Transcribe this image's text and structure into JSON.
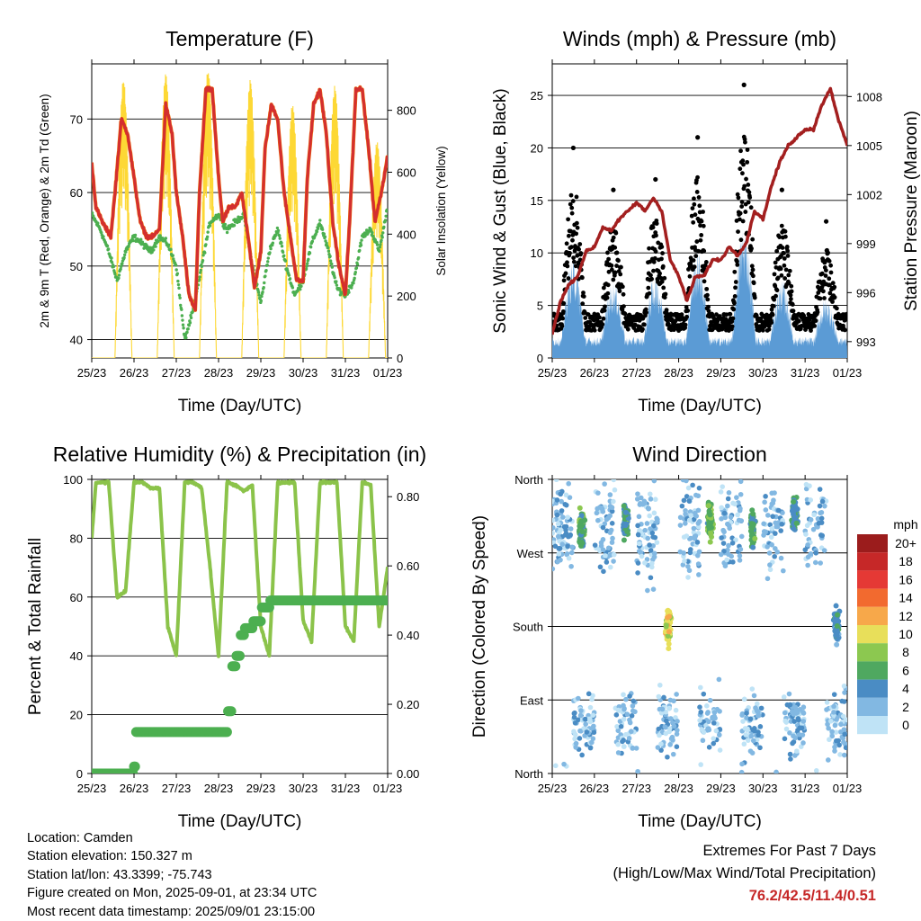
{
  "chart_data": [
    {
      "type": "line",
      "title": "Temperature (F)",
      "xlabel": "Time (Day/UTC)",
      "ylabel": "2m & 9m T (Red, Orange) & 2m Td (Green)",
      "y2label": "Solar Insolation (Yellow)",
      "x_ticks": [
        "25/23",
        "26/23",
        "27/23",
        "28/23",
        "29/23",
        "30/23",
        "31/23",
        "01/23"
      ],
      "x_range_days": [
        0,
        7
      ],
      "ylim": [
        37.5,
        77.5
      ],
      "y_ticks": [
        40,
        50,
        60,
        70
      ],
      "y2lim": [
        0,
        950
      ],
      "y2_ticks": [
        0,
        200,
        400,
        600,
        800
      ],
      "colors": {
        "temp_2m": "#d32f2f",
        "temp_9m": "#f57c00",
        "dewpoint": "#4caf50",
        "solar": "#fdd835"
      },
      "series": [
        {
          "name": "2m T",
          "x": [
            0,
            0.1,
            0.25,
            0.45,
            0.55,
            0.7,
            0.85,
            1.0,
            1.15,
            1.3,
            1.45,
            1.6,
            1.75,
            1.9,
            2.0,
            2.15,
            2.3,
            2.45,
            2.55,
            2.7,
            2.85,
            3.0,
            3.1,
            3.25,
            3.4,
            3.55,
            3.7,
            3.85,
            4.0,
            4.1,
            4.25,
            4.4,
            4.55,
            4.7,
            4.85,
            5.0,
            5.1,
            5.25,
            5.4,
            5.55,
            5.7,
            5.85,
            6.0,
            6.1,
            6.25,
            6.4,
            6.55,
            6.7,
            6.85,
            7.0
          ],
          "y": [
            64,
            58,
            56,
            54,
            60,
            70,
            68,
            62,
            56,
            54,
            54,
            55,
            72,
            68,
            60,
            54,
            46,
            44,
            60,
            74,
            74,
            62,
            56,
            58,
            58,
            60,
            54,
            47,
            52,
            66,
            72,
            70,
            60,
            54,
            48,
            48,
            62,
            72,
            74,
            68,
            56,
            50,
            46,
            56,
            74,
            74,
            66,
            56,
            60,
            65
          ]
        },
        {
          "name": "Td",
          "x": [
            0,
            0.2,
            0.4,
            0.6,
            0.8,
            1.0,
            1.2,
            1.4,
            1.6,
            1.8,
            2.0,
            2.2,
            2.4,
            2.6,
            2.8,
            3.0,
            3.2,
            3.4,
            3.6,
            3.8,
            4.0,
            4.2,
            4.4,
            4.6,
            4.8,
            5.0,
            5.2,
            5.4,
            5.6,
            5.8,
            6.0,
            6.2,
            6.4,
            6.6,
            6.8,
            7.0
          ],
          "y": [
            57,
            55,
            52,
            48,
            52,
            54,
            53,
            52,
            54,
            53,
            50,
            40,
            44,
            50,
            56,
            57,
            55,
            56,
            57,
            50,
            45,
            52,
            55,
            50,
            46,
            48,
            53,
            56,
            52,
            47,
            46,
            48,
            54,
            55,
            52,
            58
          ]
        },
        {
          "name": "Solar",
          "peak_days": [
            0.75,
            1.75,
            2.75,
            3.75,
            4.75,
            5.75,
            6.75
          ],
          "peak_values": [
            900,
            920,
            930,
            900,
            820,
            880,
            700
          ]
        }
      ]
    },
    {
      "type": "scatter",
      "title": "Winds (mph) & Pressure (mb)",
      "xlabel": "Time (Day/UTC)",
      "ylabel": "Sonic Wind & Gust (Blue, Black)",
      "y2label": "Station Pressure (Maroon)",
      "x_ticks": [
        "25/23",
        "26/23",
        "27/23",
        "28/23",
        "29/23",
        "30/23",
        "31/23",
        "01/23"
      ],
      "ylim": [
        0,
        28
      ],
      "y_ticks": [
        0,
        5,
        10,
        15,
        20,
        25
      ],
      "y2lim": [
        992.0,
        1010.0
      ],
      "y2_ticks": [
        993,
        996,
        999,
        1002,
        1005,
        1008
      ],
      "colors": {
        "wind": "#5b9bd5",
        "gust": "#000000",
        "pressure": "#a31f1f"
      },
      "series": [
        {
          "name": "Pressure",
          "x": [
            0,
            0.2,
            0.4,
            0.6,
            0.8,
            1.0,
            1.2,
            1.4,
            1.6,
            1.8,
            2.0,
            2.2,
            2.4,
            2.6,
            2.8,
            3.0,
            3.2,
            3.4,
            3.6,
            3.8,
            4.0,
            4.2,
            4.4,
            4.6,
            4.8,
            5.0,
            5.2,
            5.4,
            5.6,
            5.8,
            6.0,
            6.2,
            6.4,
            6.6,
            6.8,
            7.0
          ],
          "y": [
            993.5,
            995.5,
            996.5,
            997,
            998.5,
            998.8,
            1000,
            999.8,
            1000.5,
            1001,
            1001.5,
            1001,
            1001.8,
            1001,
            998,
            997,
            995.5,
            997,
            997,
            998,
            998,
            998.8,
            998.3,
            999,
            1001,
            1000.5,
            1002.5,
            1004,
            1005,
            1005.5,
            1006,
            1006,
            1007.5,
            1008.5,
            1006.5,
            1005
          ]
        },
        {
          "name": "Gust peaks",
          "peak_days": [
            0.5,
            1.45,
            2.45,
            3.45,
            4.55,
            5.45,
            6.5
          ],
          "peak_values": [
            20,
            16,
            17,
            21,
            26,
            16,
            13
          ]
        }
      ]
    },
    {
      "type": "line",
      "title": "Relative Humidity (%) & Precipitation (in)",
      "xlabel": "Time (Day/UTC)",
      "ylabel": "Percent & Total Rainfall",
      "x_ticks": [
        "25/23",
        "26/23",
        "27/23",
        "28/23",
        "29/23",
        "30/23",
        "31/23",
        "01/23"
      ],
      "ylim": [
        0,
        100
      ],
      "y_ticks": [
        0,
        20,
        40,
        60,
        80,
        100
      ],
      "y2lim": [
        0,
        0.85
      ],
      "y2_ticks": [
        "0.00",
        "0.20",
        "0.40",
        "0.60",
        "0.80"
      ],
      "colors": {
        "rh": "#8bc34a",
        "precip": "#4caf50"
      },
      "series": [
        {
          "name": "RH",
          "x": [
            0,
            0.1,
            0.2,
            0.4,
            0.6,
            0.8,
            1.0,
            1.2,
            1.4,
            1.6,
            1.8,
            2.0,
            2.2,
            2.4,
            2.6,
            2.8,
            3.0,
            3.2,
            3.4,
            3.6,
            3.8,
            4.0,
            4.2,
            4.4,
            4.6,
            4.8,
            5.0,
            5.2,
            5.4,
            5.6,
            5.8,
            6.0,
            6.2,
            6.4,
            6.6,
            6.8,
            7.0
          ],
          "y": [
            80,
            99,
            99,
            99,
            60,
            62,
            99,
            99,
            97,
            97,
            50,
            40,
            99,
            99,
            97,
            70,
            40,
            99,
            98,
            96,
            98,
            50,
            40,
            99,
            99,
            99,
            52,
            45,
            99,
            99,
            99,
            50,
            45,
            99,
            98,
            50,
            70
          ]
        },
        {
          "name": "Precip",
          "x": [
            0,
            0.8,
            1.0,
            1.05,
            1.2,
            2.0,
            3.0,
            3.2,
            3.3,
            3.4,
            3.5,
            3.6,
            3.8,
            4.0,
            4.2,
            5.0,
            6.0,
            7.0
          ],
          "y": [
            0,
            0.0,
            0.02,
            0.12,
            0.12,
            0.12,
            0.12,
            0.18,
            0.31,
            0.34,
            0.4,
            0.42,
            0.44,
            0.48,
            0.5,
            0.5,
            0.5,
            0.5
          ]
        }
      ]
    },
    {
      "type": "scatter",
      "title": "Wind Direction",
      "xlabel": "Time (Day/UTC)",
      "ylabel": "Direction (Colored By Speed)",
      "x_ticks": [
        "25/23",
        "26/23",
        "27/23",
        "28/23",
        "29/23",
        "30/23",
        "31/23",
        "01/23"
      ],
      "y_ticks": [
        "North",
        "East",
        "South",
        "West",
        "North"
      ],
      "legend": {
        "title": "mph",
        "placement": "right",
        "labels": [
          "20+",
          "18",
          "16",
          "14",
          "12",
          "10",
          "8",
          "6",
          "4",
          "2",
          "0"
        ],
        "colors": [
          "#9b1c1c",
          "#c62828",
          "#e53935",
          "#f26a2f",
          "#f7a84a",
          "#e8df5a",
          "#8cc850",
          "#4fa860",
          "#4a8cc4",
          "#82b8e2",
          "#bfe3f6"
        ]
      },
      "clusters": [
        {
          "x": 0.7,
          "dir": 300,
          "speed": 6
        },
        {
          "x": 1.75,
          "dir": 310,
          "speed": 5
        },
        {
          "x": 2.75,
          "dir": 180,
          "speed": 10
        },
        {
          "x": 3.75,
          "dir": 310,
          "speed": 7
        },
        {
          "x": 4.75,
          "dir": 300,
          "speed": 6
        },
        {
          "x": 5.75,
          "dir": 320,
          "speed": 5
        },
        {
          "x": 6.75,
          "dir": 180,
          "speed": 4
        }
      ]
    }
  ],
  "footer": {
    "location": "Location: Camden",
    "elevation": "Station elevation: 150.327 m",
    "latlon": "Station lat/lon: 43.3399; -75.743",
    "created": "Figure created on Mon, 2025-09-01, at 23:34 UTC",
    "recent": "Most recent data timestamp: 2025/09/01 23:15:00"
  },
  "extremes": {
    "title": "Extremes For Past 7 Days",
    "subtitle": "(High/Low/Max Wind/Total Precipitation)",
    "values": "76.2/42.5/11.4/0.51"
  }
}
